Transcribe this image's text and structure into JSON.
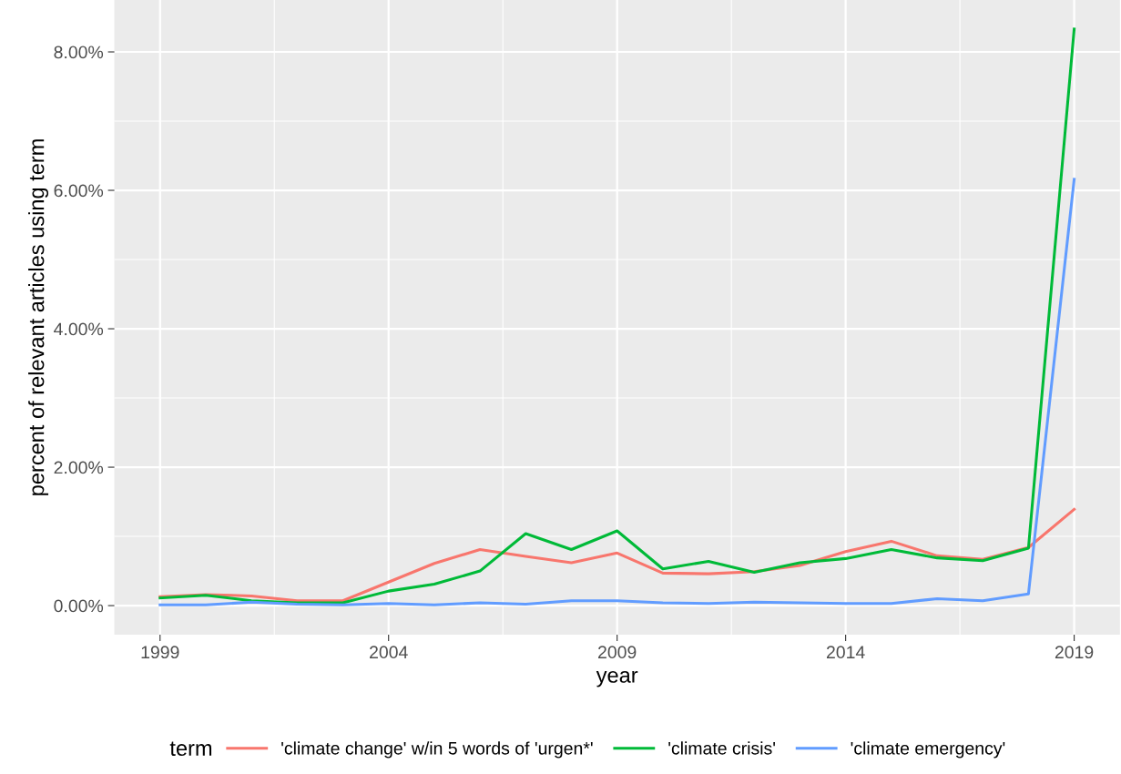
{
  "chart_data": {
    "type": "line",
    "xlabel": "year",
    "ylabel": "percent of relevant articles using term",
    "legend_title": "term",
    "x": [
      1999,
      2000,
      2001,
      2002,
      2003,
      2004,
      2005,
      2006,
      2007,
      2008,
      2009,
      2010,
      2011,
      2012,
      2013,
      2014,
      2015,
      2016,
      2017,
      2018,
      2019
    ],
    "series": [
      {
        "name": "'climate change' w/in 5 words of 'urgen*'",
        "color": "#f8766d",
        "values": [
          0.13,
          0.16,
          0.14,
          0.07,
          0.07,
          0.34,
          0.61,
          0.81,
          0.71,
          0.62,
          0.76,
          0.47,
          0.46,
          0.49,
          0.58,
          0.78,
          0.93,
          0.72,
          0.67,
          0.84,
          1.39
        ]
      },
      {
        "name": "'climate crisis'",
        "color": "#00ba38",
        "values": [
          0.11,
          0.15,
          0.07,
          0.04,
          0.04,
          0.21,
          0.31,
          0.5,
          1.04,
          0.81,
          1.08,
          0.53,
          0.64,
          0.48,
          0.62,
          0.68,
          0.81,
          0.69,
          0.65,
          0.83,
          8.33
        ]
      },
      {
        "name": "'climate emergency'",
        "color": "#619cff",
        "values": [
          0.01,
          0.01,
          0.05,
          0.02,
          0.01,
          0.03,
          0.01,
          0.04,
          0.02,
          0.07,
          0.07,
          0.04,
          0.03,
          0.05,
          0.04,
          0.03,
          0.03,
          0.1,
          0.07,
          0.17,
          6.16
        ]
      }
    ],
    "xlim": [
      1998,
      2020
    ],
    "xticks": [
      1999,
      2004,
      2009,
      2014,
      2019
    ],
    "ylim": [
      -0.42,
      8.75
    ],
    "yticks": [
      {
        "value": 0,
        "label": "0.00%"
      },
      {
        "value": 2,
        "label": "2.00%"
      },
      {
        "value": 4,
        "label": "4.00%"
      },
      {
        "value": 6,
        "label": "6.00%"
      },
      {
        "value": 8,
        "label": "8.00%"
      }
    ],
    "grid": true,
    "legend": "bottom",
    "marker": "none",
    "line_style": "solid"
  }
}
